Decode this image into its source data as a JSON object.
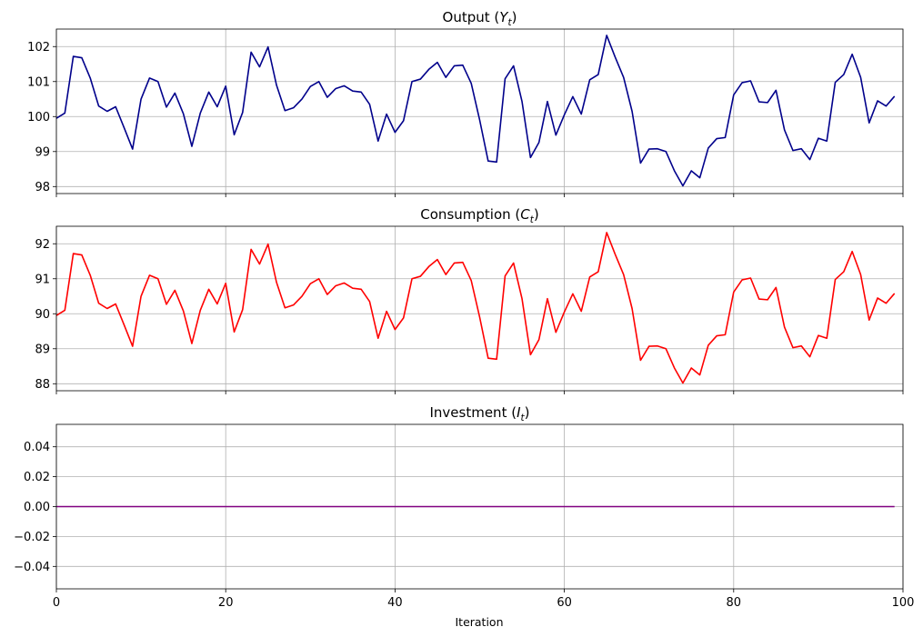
{
  "chart_data": [
    {
      "type": "line",
      "title": "Output (Y_t)",
      "title_base": "Output (",
      "title_symbol": "Y",
      "title_subscript": "t",
      "title_close": ")",
      "xlabel": "",
      "ylabel": "",
      "xlim": [
        0,
        100
      ],
      "ylim": [
        97.8,
        102.5
      ],
      "yticks": [
        98,
        99,
        100,
        101,
        102
      ],
      "ytick_labels": [
        "98",
        "99",
        "100",
        "101",
        "102"
      ],
      "grid": true,
      "series": [
        {
          "color": "#00008b",
          "x": [
            0,
            1,
            2,
            3,
            4,
            5,
            6,
            7,
            8,
            9,
            10,
            11,
            12,
            13,
            14,
            15,
            16,
            17,
            18,
            19,
            20,
            21,
            22,
            23,
            24,
            25,
            26,
            27,
            28,
            29,
            30,
            31,
            32,
            33,
            34,
            35,
            36,
            37,
            38,
            39,
            40,
            41,
            42,
            43,
            44,
            45,
            46,
            47,
            48,
            49,
            50,
            51,
            52,
            53,
            54,
            55,
            56,
            57,
            58,
            59,
            60,
            61,
            62,
            63,
            64,
            65,
            66,
            67,
            68,
            69,
            70,
            71,
            72,
            73,
            74,
            75,
            76,
            77,
            78,
            79,
            80,
            81,
            82,
            83,
            84,
            85,
            86,
            87,
            88,
            89,
            90,
            91,
            92,
            93,
            94,
            95,
            96,
            97,
            98,
            99
          ],
          "values": [
            99.95,
            100.1,
            101.72,
            101.68,
            101.1,
            100.3,
            100.15,
            100.28,
            99.68,
            99.07,
            100.5,
            101.1,
            101.0,
            100.27,
            100.67,
            100.08,
            99.15,
            100.1,
            100.7,
            100.28,
            100.87,
            99.48,
            100.12,
            101.84,
            101.42,
            101.99,
            100.9,
            100.17,
            100.25,
            100.5,
            100.86,
            101.0,
            100.55,
            100.8,
            100.88,
            100.73,
            100.7,
            100.35,
            99.3,
            100.07,
            99.55,
            99.88,
            101.0,
            101.07,
            101.35,
            101.55,
            101.12,
            101.45,
            101.47,
            100.95,
            99.9,
            98.73,
            98.7,
            101.08,
            101.45,
            100.43,
            98.83,
            99.26,
            100.43,
            99.47,
            100.05,
            100.57,
            100.07,
            101.05,
            101.2,
            102.32,
            101.7,
            101.12,
            100.15,
            98.67,
            99.07,
            99.08,
            99.0,
            98.45,
            98.02,
            98.45,
            98.25,
            99.1,
            99.37,
            99.4,
            100.62,
            100.97,
            101.02,
            100.42,
            100.4,
            100.75,
            99.62,
            99.03,
            99.08,
            98.77,
            99.38,
            99.3,
            100.98,
            101.2,
            101.78,
            101.12,
            99.82,
            100.45,
            100.3,
            100.58
          ]
        }
      ]
    },
    {
      "type": "line",
      "title": "Consumption (C_t)",
      "title_base": "Consumption (",
      "title_symbol": "C",
      "title_subscript": "t",
      "title_close": ")",
      "xlabel": "",
      "ylabel": "",
      "xlim": [
        0,
        100
      ],
      "ylim": [
        87.8,
        92.5
      ],
      "yticks": [
        88,
        89,
        90,
        91,
        92
      ],
      "ytick_labels": [
        "88",
        "89",
        "90",
        "91",
        "92"
      ],
      "grid": true,
      "series": [
        {
          "color": "#ff0000",
          "x": [
            0,
            1,
            2,
            3,
            4,
            5,
            6,
            7,
            8,
            9,
            10,
            11,
            12,
            13,
            14,
            15,
            16,
            17,
            18,
            19,
            20,
            21,
            22,
            23,
            24,
            25,
            26,
            27,
            28,
            29,
            30,
            31,
            32,
            33,
            34,
            35,
            36,
            37,
            38,
            39,
            40,
            41,
            42,
            43,
            44,
            45,
            46,
            47,
            48,
            49,
            50,
            51,
            52,
            53,
            54,
            55,
            56,
            57,
            58,
            59,
            60,
            61,
            62,
            63,
            64,
            65,
            66,
            67,
            68,
            69,
            70,
            71,
            72,
            73,
            74,
            75,
            76,
            77,
            78,
            79,
            80,
            81,
            82,
            83,
            84,
            85,
            86,
            87,
            88,
            89,
            90,
            91,
            92,
            93,
            94,
            95,
            96,
            97,
            98,
            99
          ],
          "values": [
            89.95,
            90.1,
            91.72,
            91.68,
            91.1,
            90.3,
            90.15,
            90.28,
            89.68,
            89.07,
            90.5,
            91.1,
            91.0,
            90.27,
            90.67,
            90.08,
            89.15,
            90.1,
            90.7,
            90.28,
            90.87,
            89.48,
            90.12,
            91.84,
            91.42,
            91.99,
            90.9,
            90.17,
            90.25,
            90.5,
            90.86,
            91.0,
            90.55,
            90.8,
            90.88,
            90.73,
            90.7,
            90.35,
            89.3,
            90.07,
            89.55,
            89.88,
            91.0,
            91.07,
            91.35,
            91.55,
            91.12,
            91.45,
            91.47,
            90.95,
            89.9,
            88.73,
            88.7,
            91.08,
            91.45,
            90.43,
            88.83,
            89.26,
            90.43,
            89.47,
            90.05,
            90.57,
            90.07,
            91.05,
            91.2,
            92.32,
            91.7,
            91.12,
            90.15,
            88.67,
            89.07,
            89.08,
            89.0,
            88.45,
            88.02,
            88.45,
            88.25,
            89.1,
            89.37,
            89.4,
            90.62,
            90.97,
            91.02,
            90.42,
            90.4,
            90.75,
            89.62,
            89.03,
            89.08,
            88.77,
            89.38,
            89.3,
            90.98,
            91.2,
            91.78,
            91.12,
            89.82,
            90.45,
            90.3,
            90.58
          ]
        }
      ]
    },
    {
      "type": "line",
      "title": "Investment (I_t)",
      "title_base": "Investment (",
      "title_symbol": "I",
      "title_subscript": "t",
      "title_close": ")",
      "xlabel": "Iteration",
      "ylabel": "",
      "xlim": [
        0,
        100
      ],
      "ylim": [
        -0.055,
        0.055
      ],
      "yticks": [
        -0.04,
        -0.02,
        0.0,
        0.02,
        0.04
      ],
      "ytick_labels": [
        "−0.04",
        "−0.02",
        "0.00",
        "0.02",
        "0.04"
      ],
      "grid": true,
      "series": [
        {
          "color": "#800080",
          "x": [
            0,
            99
          ],
          "values": [
            0,
            0
          ]
        }
      ]
    }
  ],
  "x_axis": {
    "ticks": [
      0,
      20,
      40,
      60,
      80,
      100
    ],
    "tick_labels": [
      "0",
      "20",
      "40",
      "60",
      "80",
      "100"
    ],
    "label": "Iteration"
  }
}
